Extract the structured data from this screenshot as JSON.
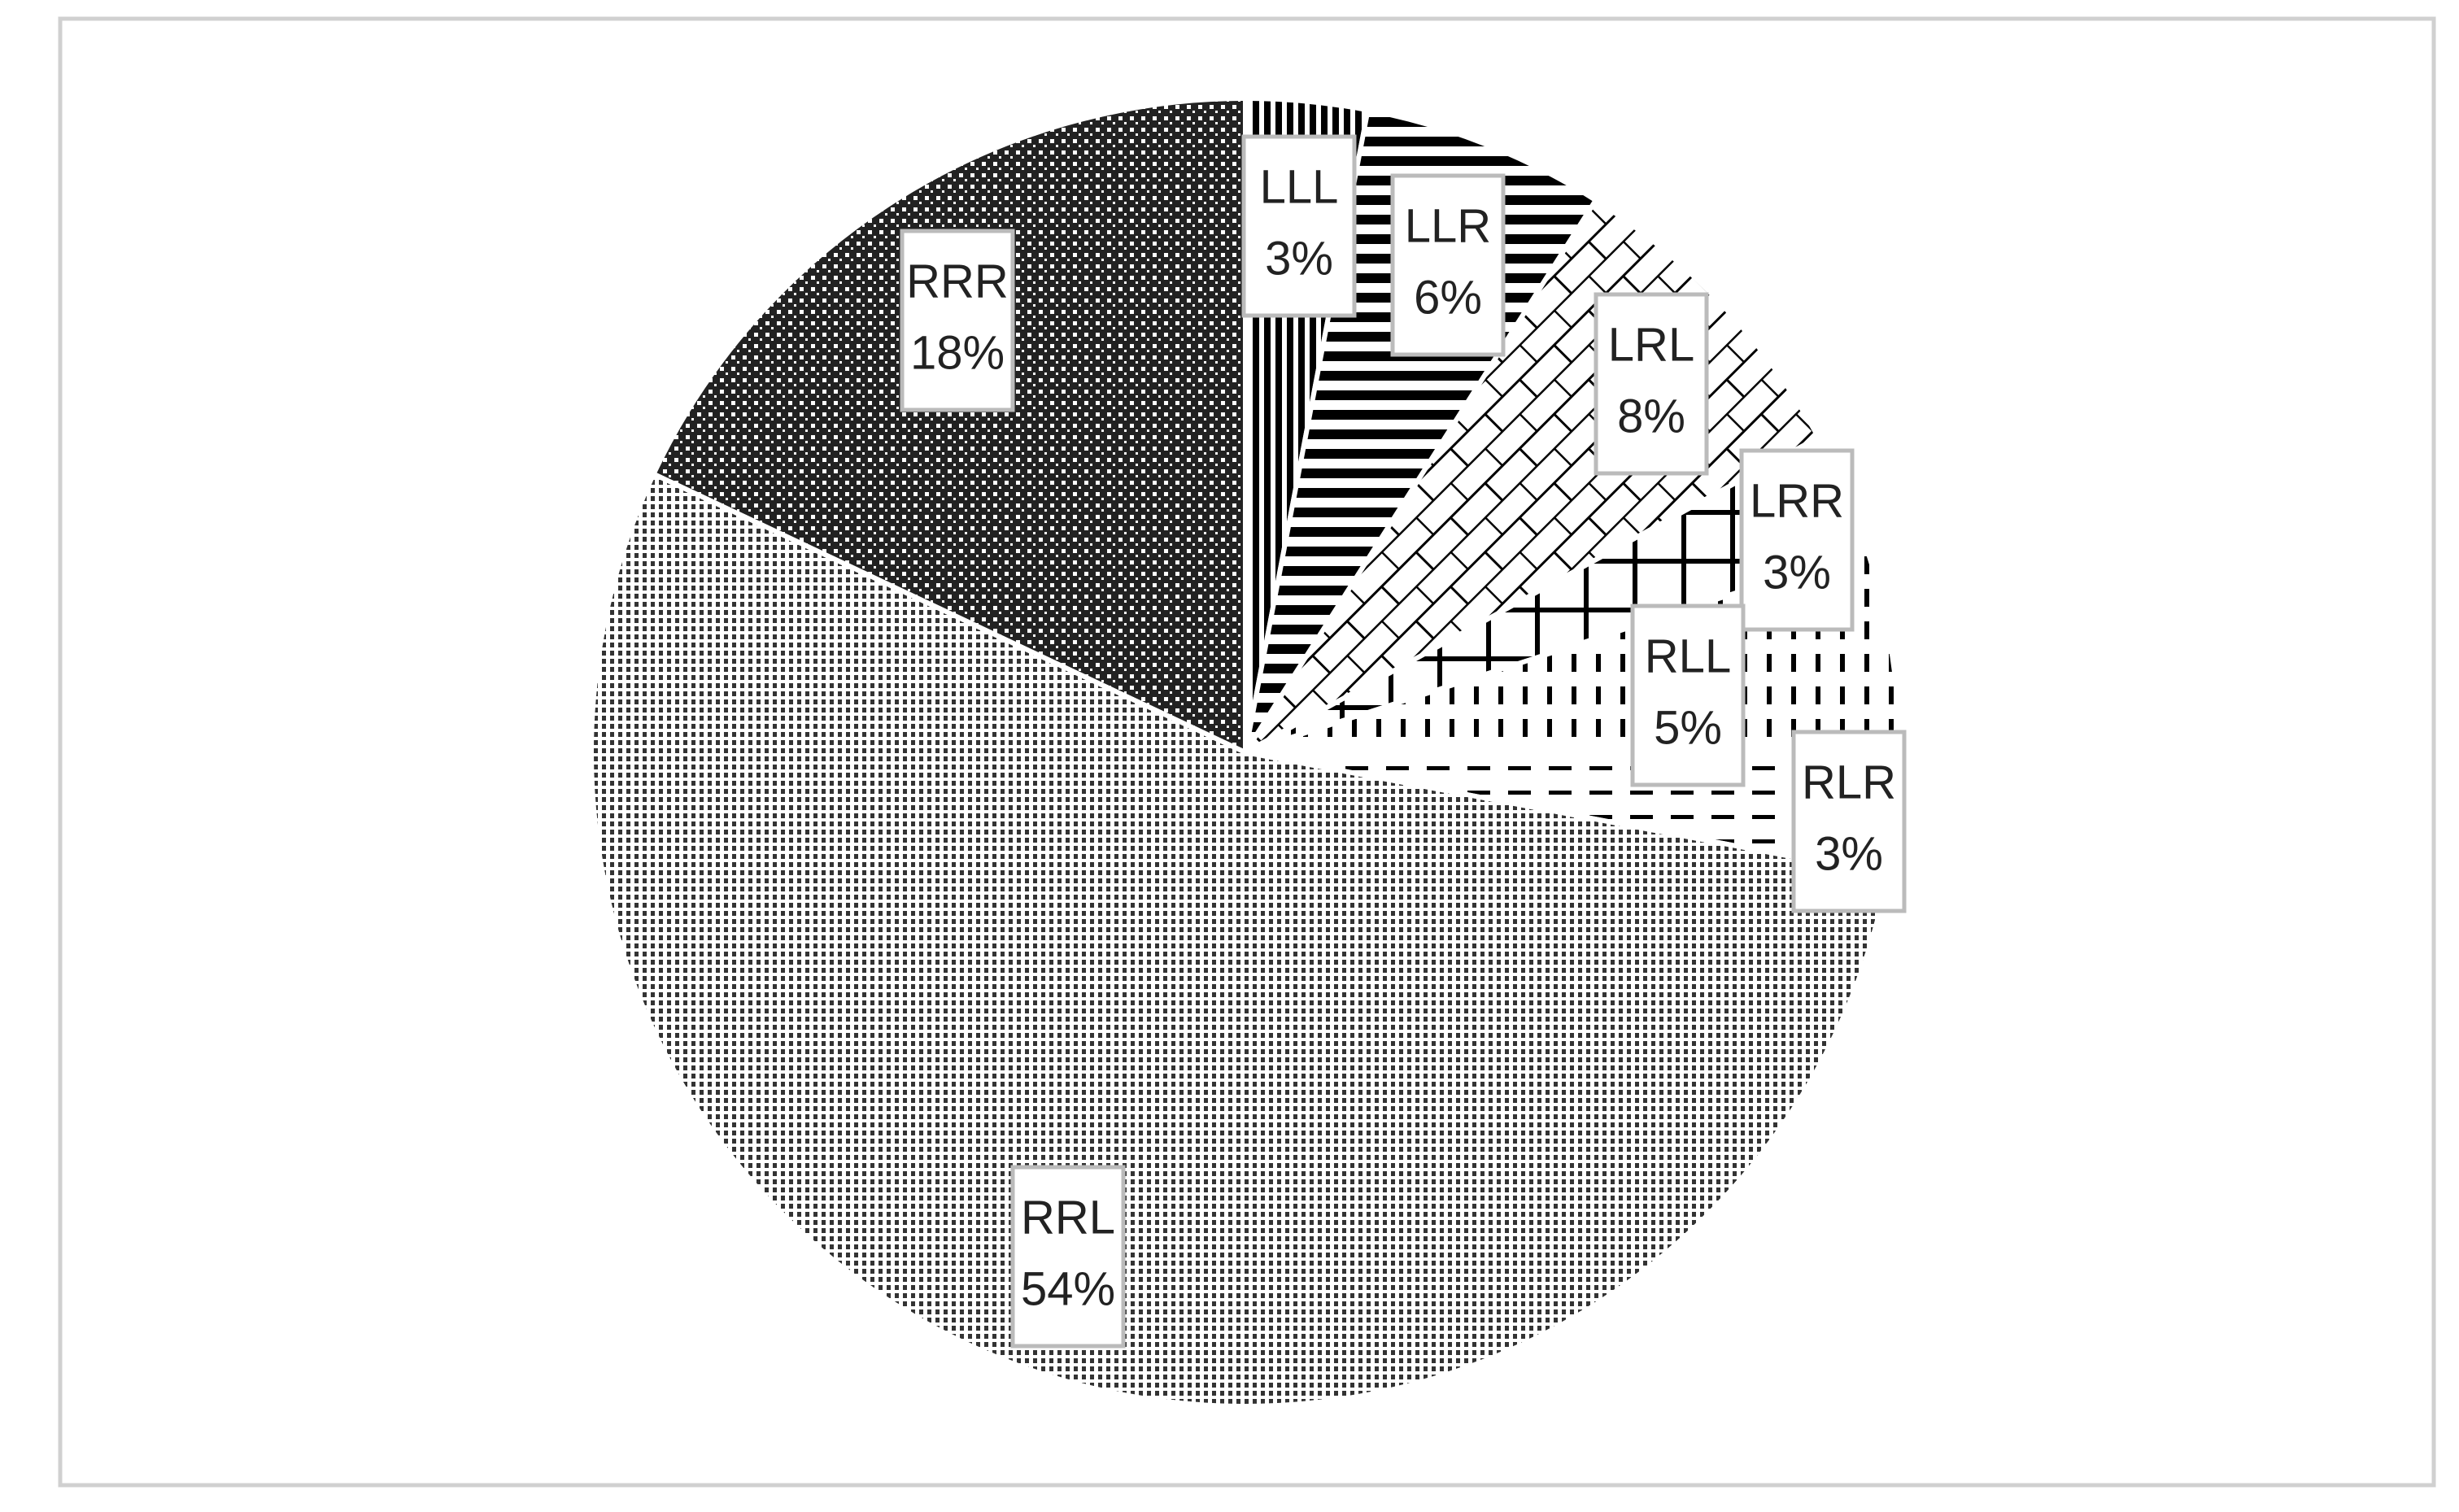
{
  "chart_data": {
    "type": "pie",
    "categories": [
      "LLL",
      "LLR",
      "LRL",
      "LRR",
      "RLL",
      "RLR",
      "RRL",
      "RRR"
    ],
    "values": [
      3,
      6,
      8,
      3,
      5,
      3,
      54,
      18
    ],
    "value_labels": [
      "3%",
      "6%",
      "8%",
      "3%",
      "5%",
      "3%",
      "54%",
      "18%"
    ]
  }
}
